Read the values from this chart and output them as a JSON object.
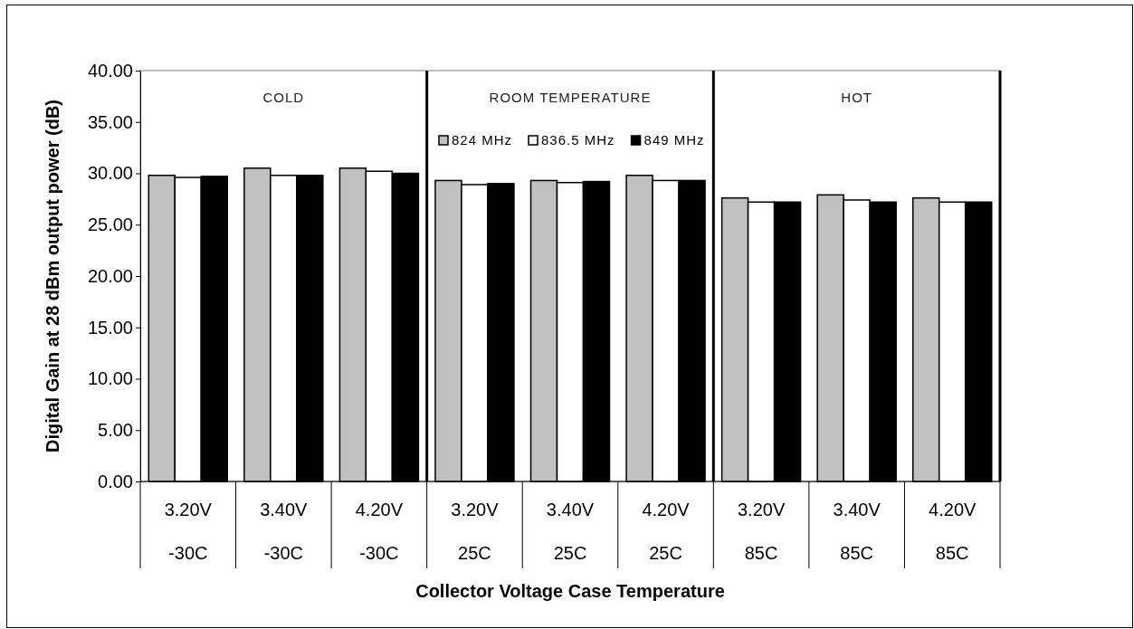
{
  "chart_data": {
    "type": "bar",
    "xlabel": "Collector Voltage Case Temperature",
    "ylabel": "Digital Gain at 28 dBm output power (dB)",
    "categories": [
      "3.20V\n-30C",
      "3.40V\n-30C",
      "4.20V\n-30C",
      "3.20V\n25C",
      "3.40V\n25C",
      "4.20V\n25C",
      "3.20V\n85C",
      "3.40V\n85C",
      "4.20V\n85C"
    ],
    "series": [
      {
        "name": "824 MHz",
        "color": "#c0c0c0",
        "values": [
          29.8,
          30.5,
          30.5,
          29.3,
          29.3,
          29.8,
          27.6,
          27.9,
          27.6
        ]
      },
      {
        "name": "836.5 MHz",
        "color": "#ffffff",
        "values": [
          29.6,
          29.8,
          30.2,
          28.9,
          29.1,
          29.3,
          27.2,
          27.4,
          27.2
        ]
      },
      {
        "name": "849 MHz",
        "color": "#000000",
        "values": [
          29.7,
          29.8,
          30.0,
          29.0,
          29.2,
          29.3,
          27.2,
          27.2,
          27.2
        ]
      }
    ],
    "annotations": [
      "COLD",
      "ROOM TEMPERATURE",
      "HOT"
    ],
    "ylim": [
      0,
      40
    ],
    "yticks": [
      {
        "value": 0,
        "label": "0.00"
      },
      {
        "value": 5,
        "label": "5.00"
      },
      {
        "value": 10,
        "label": "10.00"
      },
      {
        "value": 15,
        "label": "15.00"
      },
      {
        "value": 20,
        "label": "20.00"
      },
      {
        "value": 25,
        "label": "25.00"
      },
      {
        "value": 30,
        "label": "30.00"
      },
      {
        "value": 35,
        "label": "35.00"
      },
      {
        "value": 40,
        "label": "40.00"
      }
    ],
    "grid": false,
    "legend": "top"
  }
}
